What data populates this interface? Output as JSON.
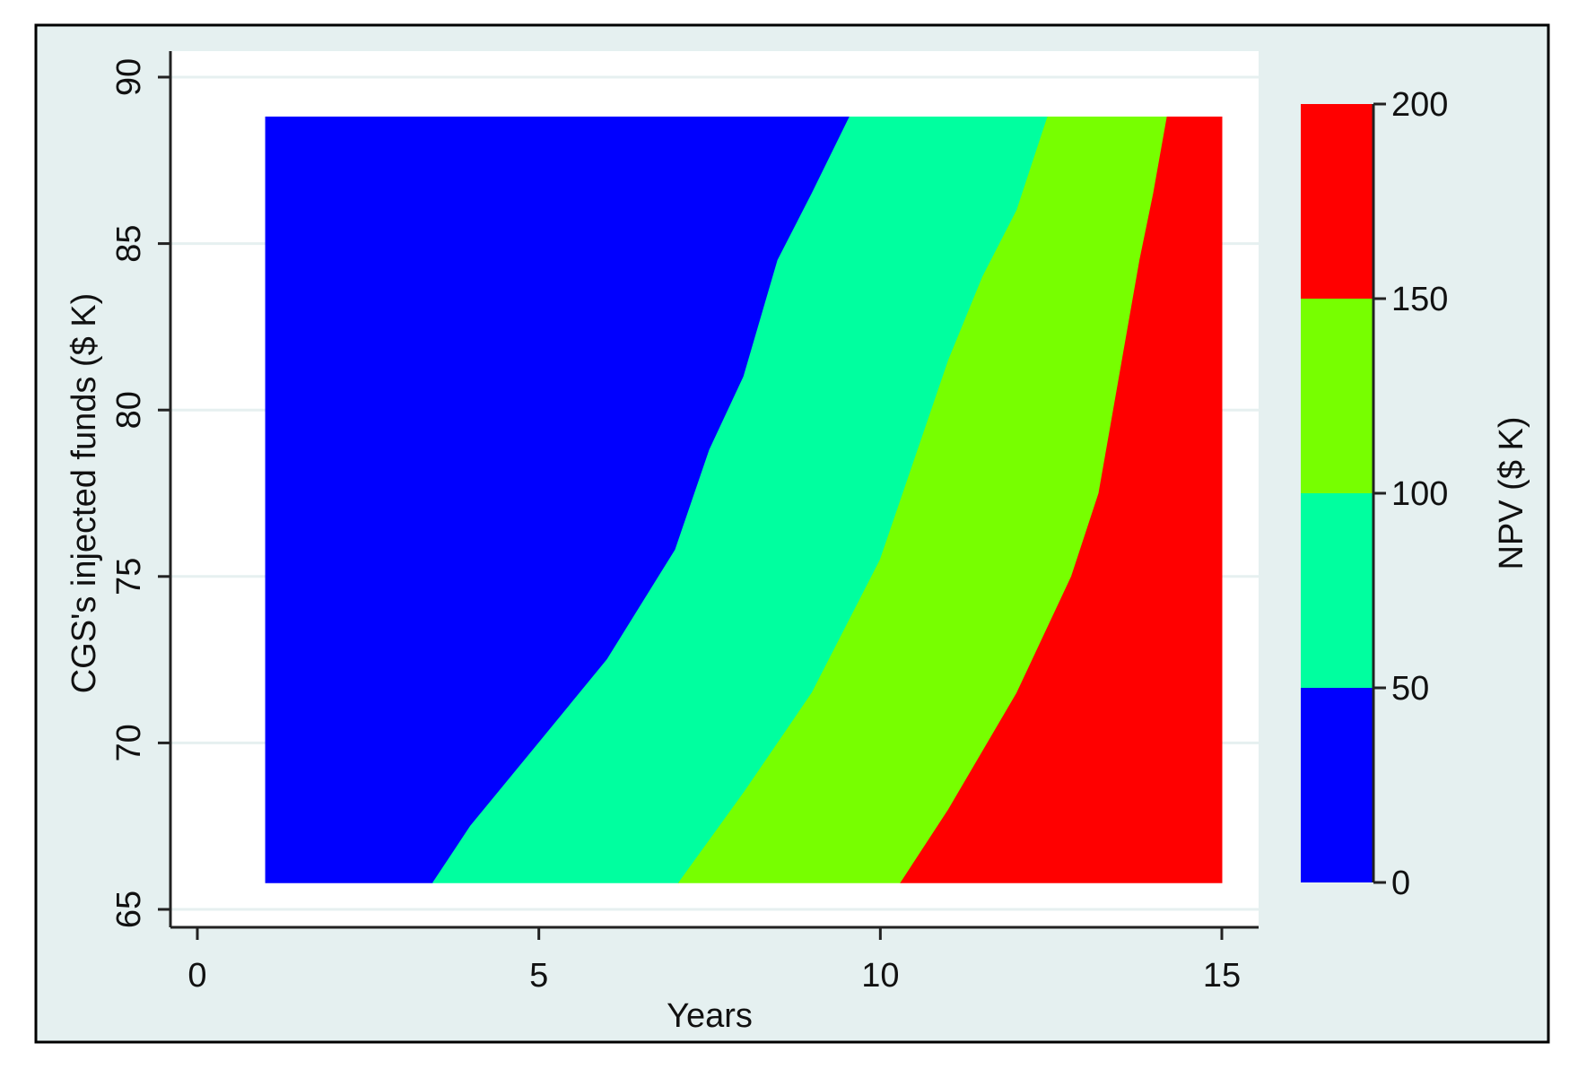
{
  "chart_data": {
    "type": "contour",
    "xlabel": "Years",
    "ylabel": "CGS's injected funds ($ K)",
    "xlim": [
      0,
      15
    ],
    "ylim": [
      65,
      90
    ],
    "x_ticks": [
      "0",
      "5",
      "10",
      "15"
    ],
    "y_ticks": [
      "65",
      "70",
      "75",
      "80",
      "85",
      "90"
    ],
    "x_tick_values": [
      0,
      5,
      10,
      15
    ],
    "y_tick_values": [
      65,
      70,
      75,
      80,
      85,
      90
    ],
    "data_extent": {
      "x": [
        1,
        15
      ],
      "y": [
        65.8,
        88.8
      ]
    },
    "grid": true,
    "legend": {
      "label": "NPV ($ K)",
      "placement": "right",
      "ticks": [
        "0",
        "50",
        "100",
        "150",
        "200"
      ],
      "tick_values": [
        0,
        50,
        100,
        150,
        200
      ]
    },
    "levels": [
      {
        "range": [
          0,
          50
        ],
        "color": "#0000ff"
      },
      {
        "range": [
          50,
          100
        ],
        "color": "#00ff9f"
      },
      {
        "range": [
          100,
          150
        ],
        "color": "#77ff00"
      },
      {
        "range": [
          150,
          200
        ],
        "color": "#ff0000"
      }
    ],
    "contour_lines": [
      {
        "level": 50,
        "points": [
          [
            3.45,
            65.8
          ],
          [
            4.0,
            67.5
          ],
          [
            5.0,
            70.0
          ],
          [
            6.0,
            72.5
          ],
          [
            7.0,
            75.8
          ],
          [
            7.5,
            78.8
          ],
          [
            8.0,
            81.0
          ],
          [
            8.5,
            84.5
          ],
          [
            9.0,
            86.5
          ],
          [
            9.55,
            88.8
          ]
        ]
      },
      {
        "level": 100,
        "points": [
          [
            7.05,
            65.8
          ],
          [
            8.0,
            68.5
          ],
          [
            9.0,
            71.5
          ],
          [
            10.0,
            75.5
          ],
          [
            10.5,
            78.5
          ],
          [
            11.0,
            81.5
          ],
          [
            11.5,
            84.0
          ],
          [
            12.0,
            86.0
          ],
          [
            12.45,
            88.8
          ]
        ]
      },
      {
        "level": 150,
        "points": [
          [
            10.3,
            65.8
          ],
          [
            11.0,
            68.0
          ],
          [
            12.0,
            71.5
          ],
          [
            12.8,
            75.0
          ],
          [
            13.2,
            77.5
          ],
          [
            13.5,
            81.0
          ],
          [
            13.8,
            84.5
          ],
          [
            14.0,
            86.5
          ],
          [
            14.2,
            88.8
          ]
        ]
      }
    ]
  }
}
